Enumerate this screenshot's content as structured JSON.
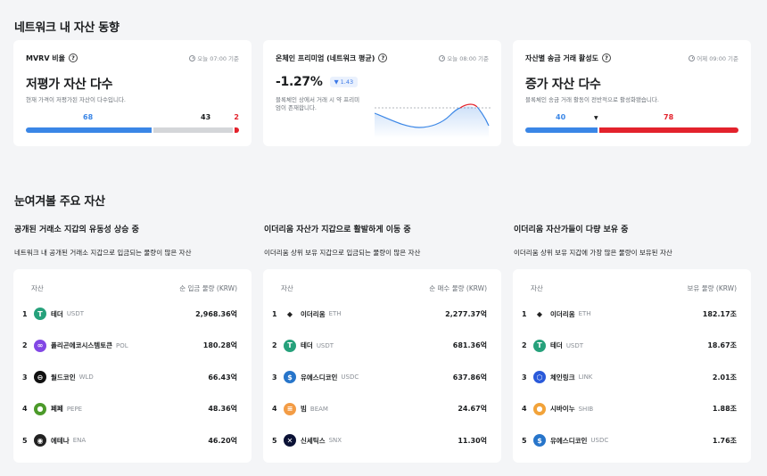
{
  "section1": {
    "title": "네트워크 내 자산 동향"
  },
  "mvrv": {
    "title": "MVRV 비율",
    "help": "?",
    "time": "오늘 07:00 기준",
    "headline": "저평가 자산 다수",
    "desc": "현재 가격이 저평가된 자산이 다수입니다.",
    "under": "68",
    "neutral": "43",
    "over": "2",
    "under_frac": 0.6,
    "neutral_frac": 0.38,
    "over_frac": 0.02,
    "colors": {
      "under": "#3a86e6",
      "neutral": "#d4d6d9",
      "over": "#e3222c"
    }
  },
  "premium": {
    "title": "온체인 프리미엄 (네트워크 평균)",
    "help": "?",
    "time": "오늘 08:00 기준",
    "value": "-1.27%",
    "change": "▼ 1.43",
    "desc": "블록체인 상에서 거래 시 약 프리미엄이 존재합니다."
  },
  "transfer": {
    "title": "자산별 송금 거래 활성도",
    "help": "?",
    "time": "어제 09:00 기준",
    "headline": "증가 자산 다수",
    "desc": "블록체인 송금 거래 활동이 전반적으로 활성화됐습니다.",
    "decrease": "40",
    "increase": "78",
    "marker": "▼",
    "decrease_frac": 0.34,
    "increase_frac": 0.66,
    "colors": {
      "decrease": "#3a86e6",
      "increase": "#e3222c"
    }
  },
  "section2": {
    "title": "눈여겨볼 주요 자산"
  },
  "columns": [
    {
      "title": "공개된 거래소 지갑의 유동성 상승 중",
      "desc": "네트워크 내 공개된 거래소 지갑으로 입금되는 물량이 많은 자산",
      "col_asset": "자산",
      "col_value": "순 입금 물량 (KRW)",
      "rows": [
        {
          "rank": "1",
          "name": "테더",
          "symbol": "USDT",
          "value": "2,968.36억",
          "icon": "tether-icon",
          "color": "#26a17b",
          "glyph": "T"
        },
        {
          "rank": "2",
          "name": "폴리곤에코시스템토큰",
          "symbol": "POL",
          "value": "180.28억",
          "icon": "polygon-icon",
          "color": "#8247e5",
          "glyph": "∞"
        },
        {
          "rank": "3",
          "name": "월드코인",
          "symbol": "WLD",
          "value": "66.43억",
          "icon": "worldcoin-icon",
          "color": "#111111",
          "glyph": "⊖"
        },
        {
          "rank": "4",
          "name": "페페",
          "symbol": "PEPE",
          "value": "48.36억",
          "icon": "pepe-icon",
          "color": "#4c9a2a",
          "glyph": "●"
        },
        {
          "rank": "5",
          "name": "에테나",
          "symbol": "ENA",
          "value": "46.20억",
          "icon": "ethena-icon",
          "color": "#222222",
          "glyph": "◉"
        }
      ]
    },
    {
      "title": "이더리움 자산가 지갑으로 활발하게 이동 중",
      "desc": "이더리움 상위 보유 지갑으로 입금되는 물량이 많은 자산",
      "col_asset": "자산",
      "col_value": "순 매수 물량 (KRW)",
      "rows": [
        {
          "rank": "1",
          "name": "이더리움",
          "symbol": "ETH",
          "value": "2,277.37억",
          "icon": "ethereum-icon",
          "color": "#ffffff",
          "glyph": "◆"
        },
        {
          "rank": "2",
          "name": "테더",
          "symbol": "USDT",
          "value": "681.36억",
          "icon": "tether-icon",
          "color": "#26a17b",
          "glyph": "T"
        },
        {
          "rank": "3",
          "name": "유에스디코인",
          "symbol": "USDC",
          "value": "637.86억",
          "icon": "usdc-icon",
          "color": "#2775ca",
          "glyph": "$"
        },
        {
          "rank": "4",
          "name": "빔",
          "symbol": "BEAM",
          "value": "24.67억",
          "icon": "beam-icon",
          "color": "#f39c45",
          "glyph": "≡"
        },
        {
          "rank": "5",
          "name": "신세틱스",
          "symbol": "SNX",
          "value": "11.30억",
          "icon": "synthetix-icon",
          "color": "#0b1236",
          "glyph": "✕"
        }
      ]
    },
    {
      "title": "이더리움 자산가들이 다량 보유 중",
      "desc": "이더리움 상위 보유 지갑에 가장 많은 물량이 보유된 자산",
      "col_asset": "자산",
      "col_value": "보유 물량 (KRW)",
      "rows": [
        {
          "rank": "1",
          "name": "이더리움",
          "symbol": "ETH",
          "value": "182.17조",
          "icon": "ethereum-icon",
          "color": "#ffffff",
          "glyph": "◆"
        },
        {
          "rank": "2",
          "name": "테더",
          "symbol": "USDT",
          "value": "18.67조",
          "icon": "tether-icon",
          "color": "#26a17b",
          "glyph": "T"
        },
        {
          "rank": "3",
          "name": "체인링크",
          "symbol": "LINK",
          "value": "2.01조",
          "icon": "chainlink-icon",
          "color": "#2a5ada",
          "glyph": "⬡"
        },
        {
          "rank": "4",
          "name": "시바이누",
          "symbol": "SHIB",
          "value": "1.88조",
          "icon": "shiba-icon",
          "color": "#f2a33a",
          "glyph": "●"
        },
        {
          "rank": "5",
          "name": "유에스디코인",
          "symbol": "USDC",
          "value": "1.76조",
          "icon": "usdc-icon",
          "color": "#2775ca",
          "glyph": "$"
        }
      ]
    }
  ]
}
